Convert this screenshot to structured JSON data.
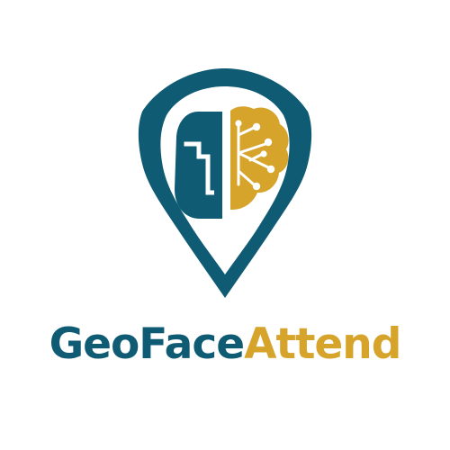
{
  "brand": {
    "name_parts": [
      "GeoFace",
      "Attend"
    ],
    "colors": {
      "primary": "#0f5b74",
      "accent": "#d7a42b",
      "background": "#ffffff"
    }
  },
  "logo": {
    "shape": "map-pin",
    "left_half_icon": "human-face-profile-icon",
    "right_half_icon": "circuit-brain-icon"
  }
}
